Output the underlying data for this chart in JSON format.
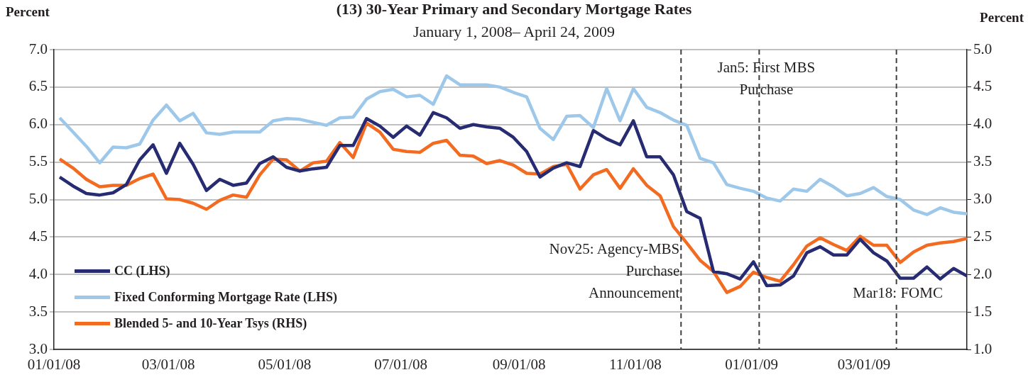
{
  "chart_data": {
    "type": "line",
    "title": "(13) 30-Year Primary and Secondary Mortgage Rates",
    "subtitle": "January 1, 2008– April 24, 2009",
    "ylabel": "Percent",
    "y2label": "Percent",
    "x": [
      "2008-01-04",
      "2008-01-11",
      "2008-01-18",
      "2008-01-25",
      "2008-02-01",
      "2008-02-08",
      "2008-02-15",
      "2008-02-22",
      "2008-02-29",
      "2008-03-07",
      "2008-03-14",
      "2008-03-21",
      "2008-03-28",
      "2008-04-04",
      "2008-04-11",
      "2008-04-18",
      "2008-04-25",
      "2008-05-02",
      "2008-05-09",
      "2008-05-16",
      "2008-05-23",
      "2008-05-30",
      "2008-06-06",
      "2008-06-13",
      "2008-06-20",
      "2008-06-27",
      "2008-07-04",
      "2008-07-11",
      "2008-07-18",
      "2008-07-25",
      "2008-08-01",
      "2008-08-08",
      "2008-08-15",
      "2008-08-22",
      "2008-08-29",
      "2008-09-05",
      "2008-09-12",
      "2008-09-19",
      "2008-09-26",
      "2008-10-03",
      "2008-10-10",
      "2008-10-17",
      "2008-10-24",
      "2008-10-31",
      "2008-11-07",
      "2008-11-14",
      "2008-11-21",
      "2008-11-28",
      "2008-12-05",
      "2008-12-12",
      "2008-12-19",
      "2008-12-26",
      "2009-01-02",
      "2009-01-09",
      "2009-01-16",
      "2009-01-23",
      "2009-01-30",
      "2009-02-06",
      "2009-02-13",
      "2009-02-20",
      "2009-02-27",
      "2009-03-06",
      "2009-03-13",
      "2009-03-20",
      "2009-03-27",
      "2009-04-03",
      "2009-04-10",
      "2009-04-17",
      "2009-04-24"
    ],
    "series": [
      {
        "name": "CC (LHS)",
        "color": "#262b72",
        "values": [
          5.3,
          5.18,
          5.08,
          5.06,
          5.09,
          5.2,
          5.53,
          5.73,
          5.35,
          5.75,
          5.47,
          5.12,
          5.27,
          5.19,
          5.22,
          5.48,
          5.57,
          5.43,
          5.38,
          5.41,
          5.43,
          5.72,
          5.72,
          6.08,
          5.98,
          5.83,
          5.98,
          5.86,
          6.16,
          6.09,
          5.95,
          6.0,
          5.97,
          5.95,
          5.83,
          5.64,
          5.3,
          5.42,
          5.49,
          5.44,
          5.92,
          5.81,
          5.73,
          6.05,
          5.57,
          5.57,
          5.33,
          4.84,
          4.75,
          4.04,
          4.01,
          3.94,
          4.17,
          3.85,
          3.86,
          3.98,
          4.29,
          4.37,
          4.26,
          4.26,
          4.47,
          4.29,
          4.18,
          3.95,
          3.95,
          4.1,
          3.94,
          4.08,
          3.98
        ]
      },
      {
        "name": "Fixed Conforming Mortgage Rate (LHS)",
        "color": "#9dc8ea",
        "values": [
          6.09,
          5.9,
          5.71,
          5.49,
          5.7,
          5.69,
          5.74,
          6.06,
          6.26,
          6.05,
          6.15,
          5.89,
          5.87,
          5.9,
          5.9,
          5.9,
          6.05,
          6.08,
          6.07,
          6.03,
          5.99,
          6.09,
          6.1,
          6.34,
          6.44,
          6.47,
          6.37,
          6.39,
          6.27,
          6.65,
          6.53,
          6.53,
          6.53,
          6.5,
          6.43,
          6.37,
          5.95,
          5.8,
          6.11,
          6.12,
          5.96,
          6.48,
          6.05,
          6.48,
          6.23,
          6.16,
          6.06,
          5.99,
          5.55,
          5.49,
          5.2,
          5.15,
          5.11,
          5.02,
          4.98,
          5.14,
          5.11,
          5.27,
          5.17,
          5.05,
          5.08,
          5.16,
          5.04,
          5.0,
          4.86,
          4.8,
          4.89,
          4.83,
          4.81
        ]
      },
      {
        "name": "Blended 5- and 10-Year Tsys (RHS)",
        "color": "#f26b21",
        "axis": "y2",
        "values": [
          3.54,
          3.42,
          3.27,
          3.17,
          3.19,
          3.19,
          3.28,
          3.34,
          3.01,
          3.0,
          2.95,
          2.87,
          2.99,
          3.06,
          3.03,
          3.33,
          3.54,
          3.53,
          3.38,
          3.49,
          3.51,
          3.76,
          3.56,
          4.02,
          3.9,
          3.67,
          3.64,
          3.63,
          3.75,
          3.79,
          3.59,
          3.58,
          3.48,
          3.52,
          3.46,
          3.35,
          3.34,
          3.44,
          3.47,
          3.14,
          3.33,
          3.4,
          3.15,
          3.41,
          3.19,
          3.05,
          2.64,
          2.42,
          2.19,
          2.04,
          1.76,
          1.84,
          2.03,
          1.96,
          1.91,
          2.13,
          2.38,
          2.49,
          2.4,
          2.32,
          2.51,
          2.39,
          2.39,
          2.16,
          2.3,
          2.39,
          2.42,
          2.44,
          2.48
        ]
      }
    ],
    "xlim": [
      "2008-01-01",
      "2009-04-24"
    ],
    "xticks": [
      {
        "value": "2008-01-01",
        "label": "01/01/08"
      },
      {
        "value": "2008-03-01",
        "label": "03/01/08"
      },
      {
        "value": "2008-05-01",
        "label": "05/01/08"
      },
      {
        "value": "2008-07-01",
        "label": "07/01/08"
      },
      {
        "value": "2008-09-01",
        "label": "09/01/08"
      },
      {
        "value": "2008-11-01",
        "label": "11/01/08"
      },
      {
        "value": "2009-01-01",
        "label": "01/01/09"
      },
      {
        "value": "2009-03-01",
        "label": "03/01/09"
      }
    ],
    "ylim": [
      3,
      7
    ],
    "yticks": [
      {
        "value": 3,
        "label": "3.0"
      },
      {
        "value": 3.5,
        "label": "3.5"
      },
      {
        "value": 4,
        "label": "4.0"
      },
      {
        "value": 4.5,
        "label": "4.5"
      },
      {
        "value": 5,
        "label": "5.0"
      },
      {
        "value": 5.5,
        "label": "5.5"
      },
      {
        "value": 6,
        "label": "6.0"
      },
      {
        "value": 6.5,
        "label": "6.5"
      },
      {
        "value": 7,
        "label": "7.0"
      }
    ],
    "y2lim": [
      1,
      5
    ],
    "y2ticks": [
      {
        "value": 1,
        "label": "1.0"
      },
      {
        "value": 1.5,
        "label": "1.5"
      },
      {
        "value": 2,
        "label": "2.0"
      },
      {
        "value": 2.5,
        "label": "2.5"
      },
      {
        "value": 3,
        "label": "3.0"
      },
      {
        "value": 3.5,
        "label": "3.5"
      },
      {
        "value": 4,
        "label": "4.0"
      },
      {
        "value": 4.5,
        "label": "4.5"
      },
      {
        "value": 5,
        "label": "5.0"
      }
    ],
    "ref_lines": [
      {
        "axis": "x",
        "value": "2008-11-25",
        "label": "Nov25: Agency-MBS Purchase Announcement",
        "color": "#404040",
        "line_style": "dashed"
      },
      {
        "axis": "x",
        "value": "2009-01-05",
        "label": "Jan5: First MBS Purchase",
        "color": "#404040",
        "line_style": "dashed"
      },
      {
        "axis": "x",
        "value": "2009-03-18",
        "label": "Mar18: FOMC",
        "color": "#404040",
        "line_style": "dashed"
      }
    ],
    "grid": "y",
    "legend": "bottom left",
    "marker": "none",
    "line_style": "solid"
  }
}
